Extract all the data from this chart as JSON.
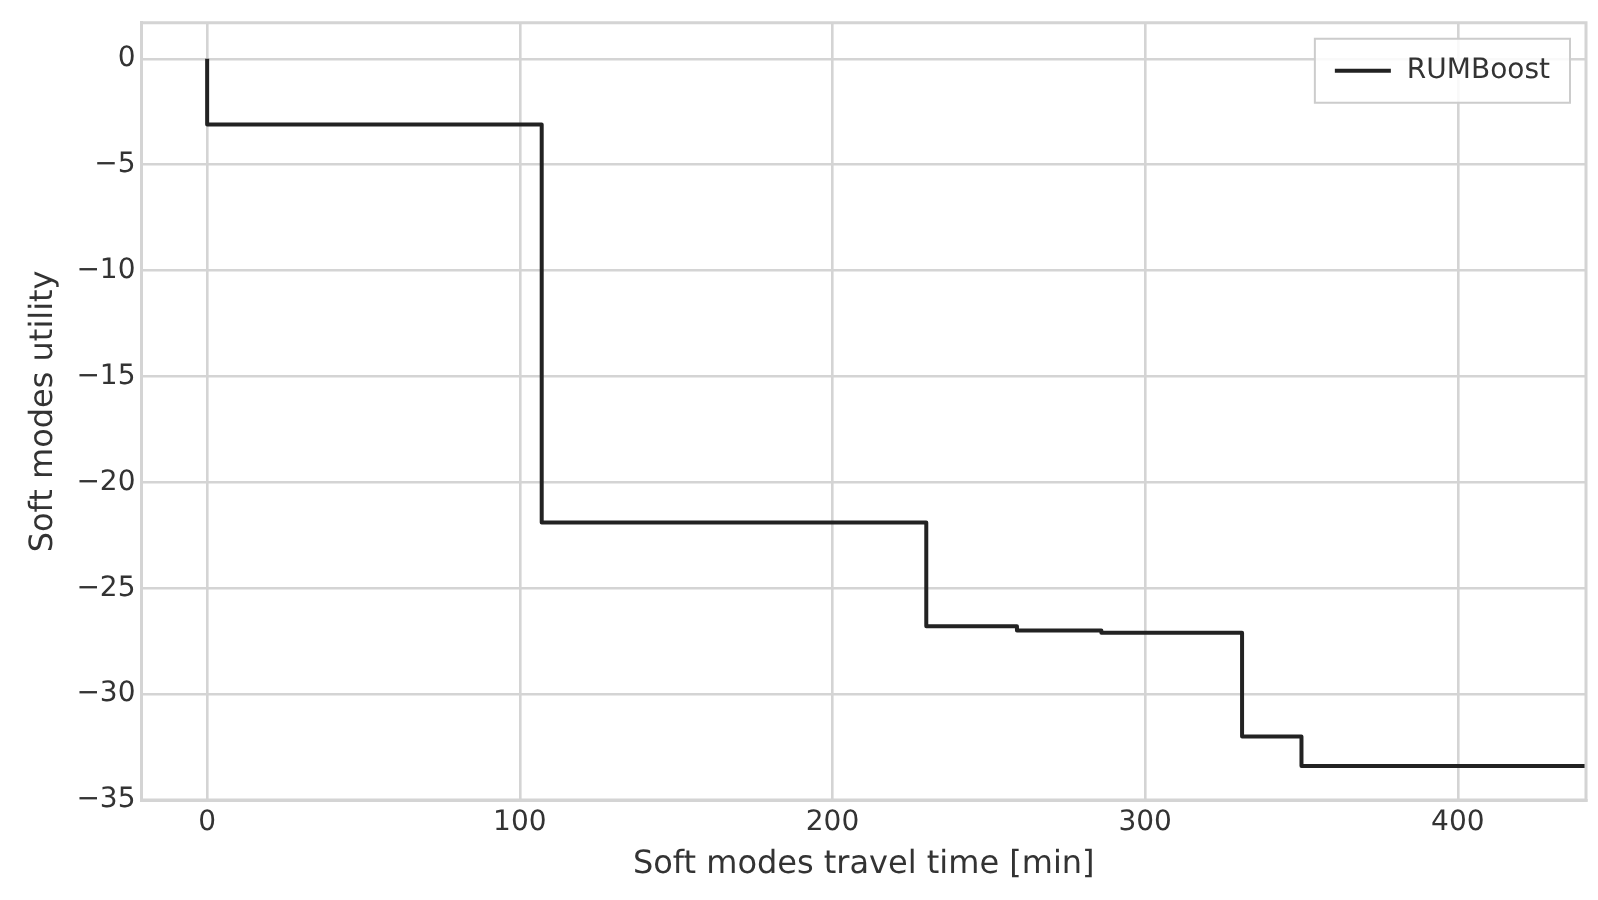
{
  "chart_data": {
    "type": "step",
    "xlabel": "Soft modes travel time [min]",
    "ylabel": "Soft modes utility",
    "x": [
      0,
      0,
      107,
      230,
      259,
      286,
      331,
      350,
      441
    ],
    "series": [
      {
        "name": "RUMBoost",
        "color": "#222222",
        "values": [
          0,
          -3.1,
          -21.9,
          -26.8,
          -27.0,
          -27.1,
          -32.0,
          -33.4,
          -33.4
        ]
      }
    ],
    "xlim": [
      -21,
      441
    ],
    "xticks": [
      0,
      100,
      200,
      300,
      400
    ],
    "ylim": [
      -35,
      1.7
    ],
    "yticks": [
      -35,
      -30,
      -25,
      -20,
      -15,
      -10,
      -5,
      0
    ],
    "grid": true,
    "legend": "top right",
    "marker": "none",
    "line_style": "solid"
  }
}
